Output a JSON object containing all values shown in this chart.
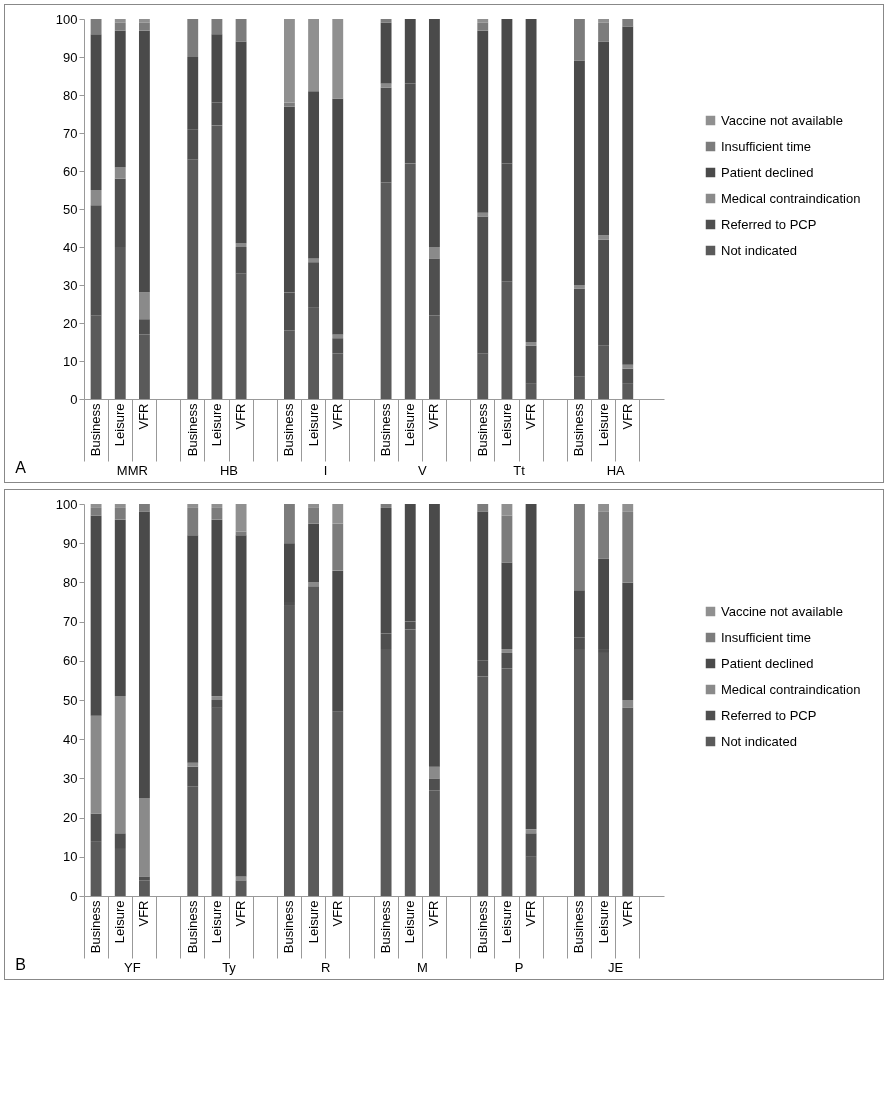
{
  "chart_data": [
    {
      "type": "bar",
      "stacked": true,
      "title": "A",
      "legend": "right",
      "grid": false,
      "categories": [
        "Business",
        "Leisure",
        "VFR",
        "Business",
        "Leisure",
        "VFR",
        "Business",
        "Leisure",
        "VFR",
        "Business",
        "Leisure",
        "VFR",
        "Business",
        "Leisure",
        "VFR",
        "Business",
        "Leisure",
        "VFR"
      ],
      "annotations": [
        "MMR",
        "HB",
        "I",
        "V",
        "Tt",
        "HA"
      ],
      "ylim": [
        0,
        100
      ],
      "yticks": [
        0,
        10,
        20,
        30,
        40,
        50,
        60,
        70,
        80,
        90,
        100
      ],
      "series": [
        {
          "name": "Not indicated",
          "color": "#5a5a5a",
          "values": [
            22,
            40,
            17,
            63,
            72,
            33,
            18,
            24,
            12,
            57,
            62,
            22,
            12,
            31,
            4,
            6,
            14,
            4
          ]
        },
        {
          "name": "Referred to PCP",
          "color": "#4f4f4f",
          "values": [
            29,
            18,
            4,
            8,
            6,
            7,
            10,
            12,
            4,
            25,
            21,
            15,
            36,
            31,
            10,
            23,
            28,
            4
          ]
        },
        {
          "name": "Medical contraindication",
          "color": "#8a8a8a",
          "values": [
            4,
            3,
            7,
            0,
            0,
            1,
            0,
            1,
            1,
            1,
            0,
            3,
            1,
            0,
            1,
            1,
            1,
            1
          ]
        },
        {
          "name": "Patient declined",
          "color": "#4a4a4a",
          "values": [
            41,
            36,
            69,
            19,
            18,
            53,
            49,
            44,
            62,
            16,
            17,
            60,
            48,
            38,
            85,
            59,
            51,
            89
          ]
        },
        {
          "name": "Insufficient time",
          "color": "#7c7c7c",
          "values": [
            4,
            2,
            2,
            10,
            4,
            6,
            1,
            0,
            0,
            1,
            0,
            0,
            2,
            0,
            0,
            11,
            5,
            2
          ]
        },
        {
          "name": "Vaccine not available",
          "color": "#909090",
          "values": [
            0,
            1,
            1,
            0,
            0,
            0,
            22,
            19,
            21,
            0,
            0,
            0,
            1,
            0,
            0,
            0,
            1,
            0
          ]
        }
      ]
    },
    {
      "type": "bar",
      "stacked": true,
      "title": "B",
      "legend": "right",
      "grid": false,
      "categories": [
        "Business",
        "Leisure",
        "VFR",
        "Business",
        "Leisure",
        "VFR",
        "Business",
        "Leisure",
        "VFR",
        "Business",
        "Leisure",
        "VFR",
        "Business",
        "Leisure",
        "VFR",
        "Business",
        "Leisure",
        "VFR"
      ],
      "annotations": [
        "YF",
        "Ty",
        "R",
        "M",
        "P",
        "JE"
      ],
      "ylim": [
        0,
        100
      ],
      "yticks": [
        0,
        10,
        20,
        30,
        40,
        50,
        60,
        70,
        80,
        90,
        100
      ],
      "series": [
        {
          "name": "Not indicated",
          "color": "#5a5a5a",
          "values": [
            14,
            12,
            4,
            28,
            48,
            4,
            74,
            79,
            47,
            63,
            68,
            27,
            56,
            58,
            10,
            63,
            62,
            48
          ]
        },
        {
          "name": "Referred to PCP",
          "color": "#4f4f4f",
          "values": [
            7,
            4,
            1,
            5,
            2,
            0,
            1,
            0,
            0,
            4,
            2,
            3,
            4,
            4,
            6,
            3,
            1,
            0
          ]
        },
        {
          "name": "Medical contraindication",
          "color": "#8a8a8a",
          "values": [
            25,
            35,
            20,
            1,
            1,
            1,
            0,
            1,
            0,
            0,
            0,
            3,
            0,
            1,
            1,
            0,
            0,
            2
          ]
        },
        {
          "name": "Patient declined",
          "color": "#4a4a4a",
          "values": [
            51,
            45,
            73,
            58,
            45,
            87,
            15,
            15,
            36,
            32,
            30,
            67,
            38,
            22,
            83,
            12,
            23,
            30
          ]
        },
        {
          "name": "Insufficient time",
          "color": "#7c7c7c",
          "values": [
            2,
            3,
            2,
            7,
            3,
            1,
            10,
            4,
            12,
            1,
            0,
            0,
            2,
            12,
            0,
            22,
            12,
            18
          ]
        },
        {
          "name": "Vaccine not available",
          "color": "#909090",
          "values": [
            1,
            1,
            0,
            1,
            1,
            7,
            0,
            1,
            5,
            0,
            0,
            0,
            0,
            3,
            0,
            0,
            2,
            2
          ]
        }
      ]
    }
  ]
}
